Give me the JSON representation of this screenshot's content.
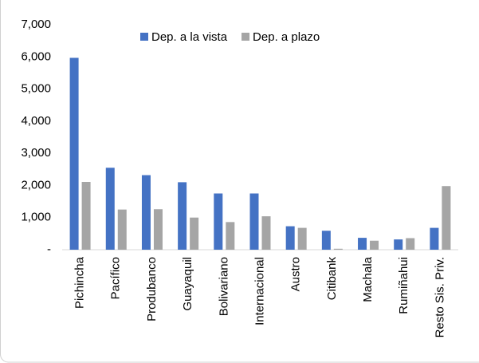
{
  "chart_data": {
    "type": "bar",
    "categories": [
      "Pichincha",
      "Pacífico",
      "Produbanco",
      "Guayaquil",
      "Bolivariano",
      "Internacional",
      "Austro",
      "Citibank",
      "Machala",
      "Rumiñahui",
      "Resto Sis. Priv."
    ],
    "series": [
      {
        "name": "Dep. a la vista",
        "color": "#4472c4",
        "values": [
          5970,
          2550,
          2320,
          2100,
          1750,
          1750,
          730,
          590,
          370,
          320,
          680
        ]
      },
      {
        "name": "Dep. a plazo",
        "color": "#a5a5a5",
        "values": [
          2110,
          1250,
          1260,
          1000,
          860,
          1040,
          680,
          30,
          280,
          360,
          1980
        ]
      }
    ],
    "ylim": [
      0,
      7000
    ],
    "yticks": [
      {
        "value": 0,
        "label": "-"
      },
      {
        "value": 1000,
        "label": "1,000"
      },
      {
        "value": 2000,
        "label": "2,000"
      },
      {
        "value": 3000,
        "label": "3,000"
      },
      {
        "value": 4000,
        "label": "4,000"
      },
      {
        "value": 5000,
        "label": "5,000"
      },
      {
        "value": 6000,
        "label": "6,000"
      },
      {
        "value": 7000,
        "label": "7,000"
      }
    ],
    "grid": false,
    "legend": "top"
  }
}
